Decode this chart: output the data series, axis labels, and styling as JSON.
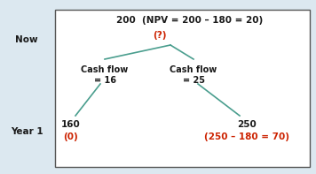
{
  "bg_color": "#dce8f0",
  "box_bg": "#ffffff",
  "box_edge": "#555555",
  "tree_line_color": "#4a9e8e",
  "text_color_black": "#1a1a1a",
  "text_color_red": "#cc2200",
  "label_now": "Now",
  "label_year1": "Year 1",
  "top_label": "200  (NPV = 200 – 180 = 20)",
  "top_sublabel": "(?)",
  "left_cf_line1": "Cash flow",
  "left_cf_line2": "= 16",
  "right_cf_line1": "Cash flow",
  "right_cf_line2": "= 25",
  "bot_left_val": "160",
  "bot_left_sub": "(0)",
  "bot_right_val": "250",
  "bot_right_sub": "(250 – 180 = 70)",
  "font_size_main": 7.0,
  "font_size_labels": 7.5,
  "font_size_side": 7.5
}
